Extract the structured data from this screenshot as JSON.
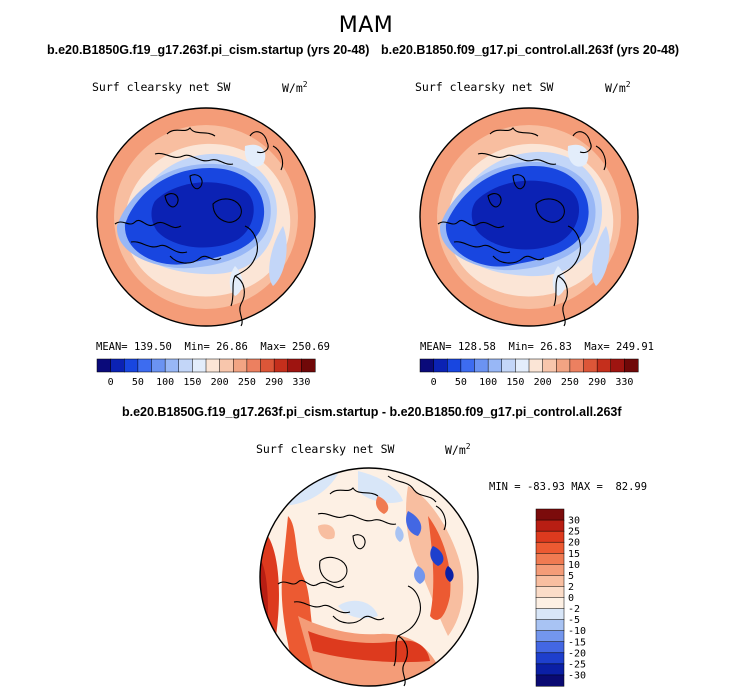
{
  "figure": {
    "title": "MAM"
  },
  "panels": [
    {
      "case_title": "b.e20.B1850G.f19_g17.263f.pi_cism.startup (yrs 20-48)",
      "field_label": "Surf clearsky net SW",
      "units_base": "W/m",
      "units_exp": "2",
      "stats": {
        "mean_label": "MEAN=",
        "mean": "139.50",
        "min_label": "Min=",
        "min": "26.86",
        "max_label": "Max=",
        "max": "250.69"
      }
    },
    {
      "case_title": "b.e20.B1850.f09_g17.pi_control.all.263f (yrs 20-48)",
      "field_label": "Surf clearsky net SW",
      "units_base": "W/m",
      "units_exp": "2",
      "stats": {
        "mean_label": "MEAN=",
        "mean": "128.58",
        "min_label": "Min=",
        "min": "26.83",
        "max_label": "Max=",
        "max": "249.91"
      }
    }
  ],
  "diff": {
    "title": "b.e20.B1850G.f19_g17.263f.pi_cism.startup - b.e20.B1850.f09_g17.pi_control.all.263f",
    "field_label": "Surf clearsky net SW",
    "units_base": "W/m",
    "units_exp": "2",
    "stats": {
      "min_label": "MIN =",
      "min": "-83.93",
      "max_label": "MAX =",
      "max": "82.99"
    }
  },
  "chart_data": [
    {
      "type": "heatmap",
      "projection": "north-polar-stereographic",
      "title": "b.e20.B1850G.f19_g17.263f.pi_cism.startup (yrs 20-48)",
      "variable": "Surf clearsky net SW",
      "units": "W/m2",
      "season": "MAM",
      "mean": 139.5,
      "min": 26.86,
      "max": 250.69,
      "colorbar": {
        "tick_labels": [
          "0",
          "50",
          "100",
          "150",
          "200",
          "250",
          "290",
          "330"
        ],
        "colors": [
          "#0a0a7a",
          "#0b22b4",
          "#1846e0",
          "#3d6cf0",
          "#6b93f2",
          "#98b7f6",
          "#c3d6f8",
          "#e3edfb",
          "#fbe5d6",
          "#f8c6ac",
          "#f2a483",
          "#ec8060",
          "#dc5638",
          "#c52f1c",
          "#9e1410",
          "#700808"
        ]
      }
    },
    {
      "type": "heatmap",
      "projection": "north-polar-stereographic",
      "title": "b.e20.B1850.f09_g17.pi_control.all.263f (yrs 20-48)",
      "variable": "Surf clearsky net SW",
      "units": "W/m2",
      "season": "MAM",
      "mean": 128.58,
      "min": 26.83,
      "max": 249.91,
      "colorbar": {
        "tick_labels": [
          "0",
          "50",
          "100",
          "150",
          "200",
          "250",
          "290",
          "330"
        ],
        "colors": [
          "#0a0a7a",
          "#0b22b4",
          "#1846e0",
          "#3d6cf0",
          "#6b93f2",
          "#98b7f6",
          "#c3d6f8",
          "#e3edfb",
          "#fbe5d6",
          "#f8c6ac",
          "#f2a483",
          "#ec8060",
          "#dc5638",
          "#c52f1c",
          "#9e1410",
          "#700808"
        ]
      }
    },
    {
      "type": "heatmap",
      "projection": "north-polar-stereographic",
      "title": "b.e20.B1850G.f19_g17.263f.pi_cism.startup - b.e20.B1850.f09_g17.pi_control.all.263f",
      "variable": "Surf clearsky net SW",
      "units": "W/m2",
      "season": "MAM",
      "min": -83.93,
      "max": 82.99,
      "colorbar": {
        "orientation": "vertical",
        "levels": [
          "30",
          "25",
          "20",
          "15",
          "10",
          "5",
          "2",
          "0",
          "-2",
          "-5",
          "-10",
          "-15",
          "-20",
          "-25",
          "-30"
        ],
        "colors": [
          "#7b0b0b",
          "#b81e13",
          "#dd3a1e",
          "#ec5a32",
          "#f07b52",
          "#f49c78",
          "#f8bea0",
          "#fbdcc8",
          "#fdf0e4",
          "#d8e6f8",
          "#a8c3f3",
          "#7396ed",
          "#4367e3",
          "#1e3fcd",
          "#0b1fa5",
          "#0a0a72"
        ]
      }
    }
  ]
}
